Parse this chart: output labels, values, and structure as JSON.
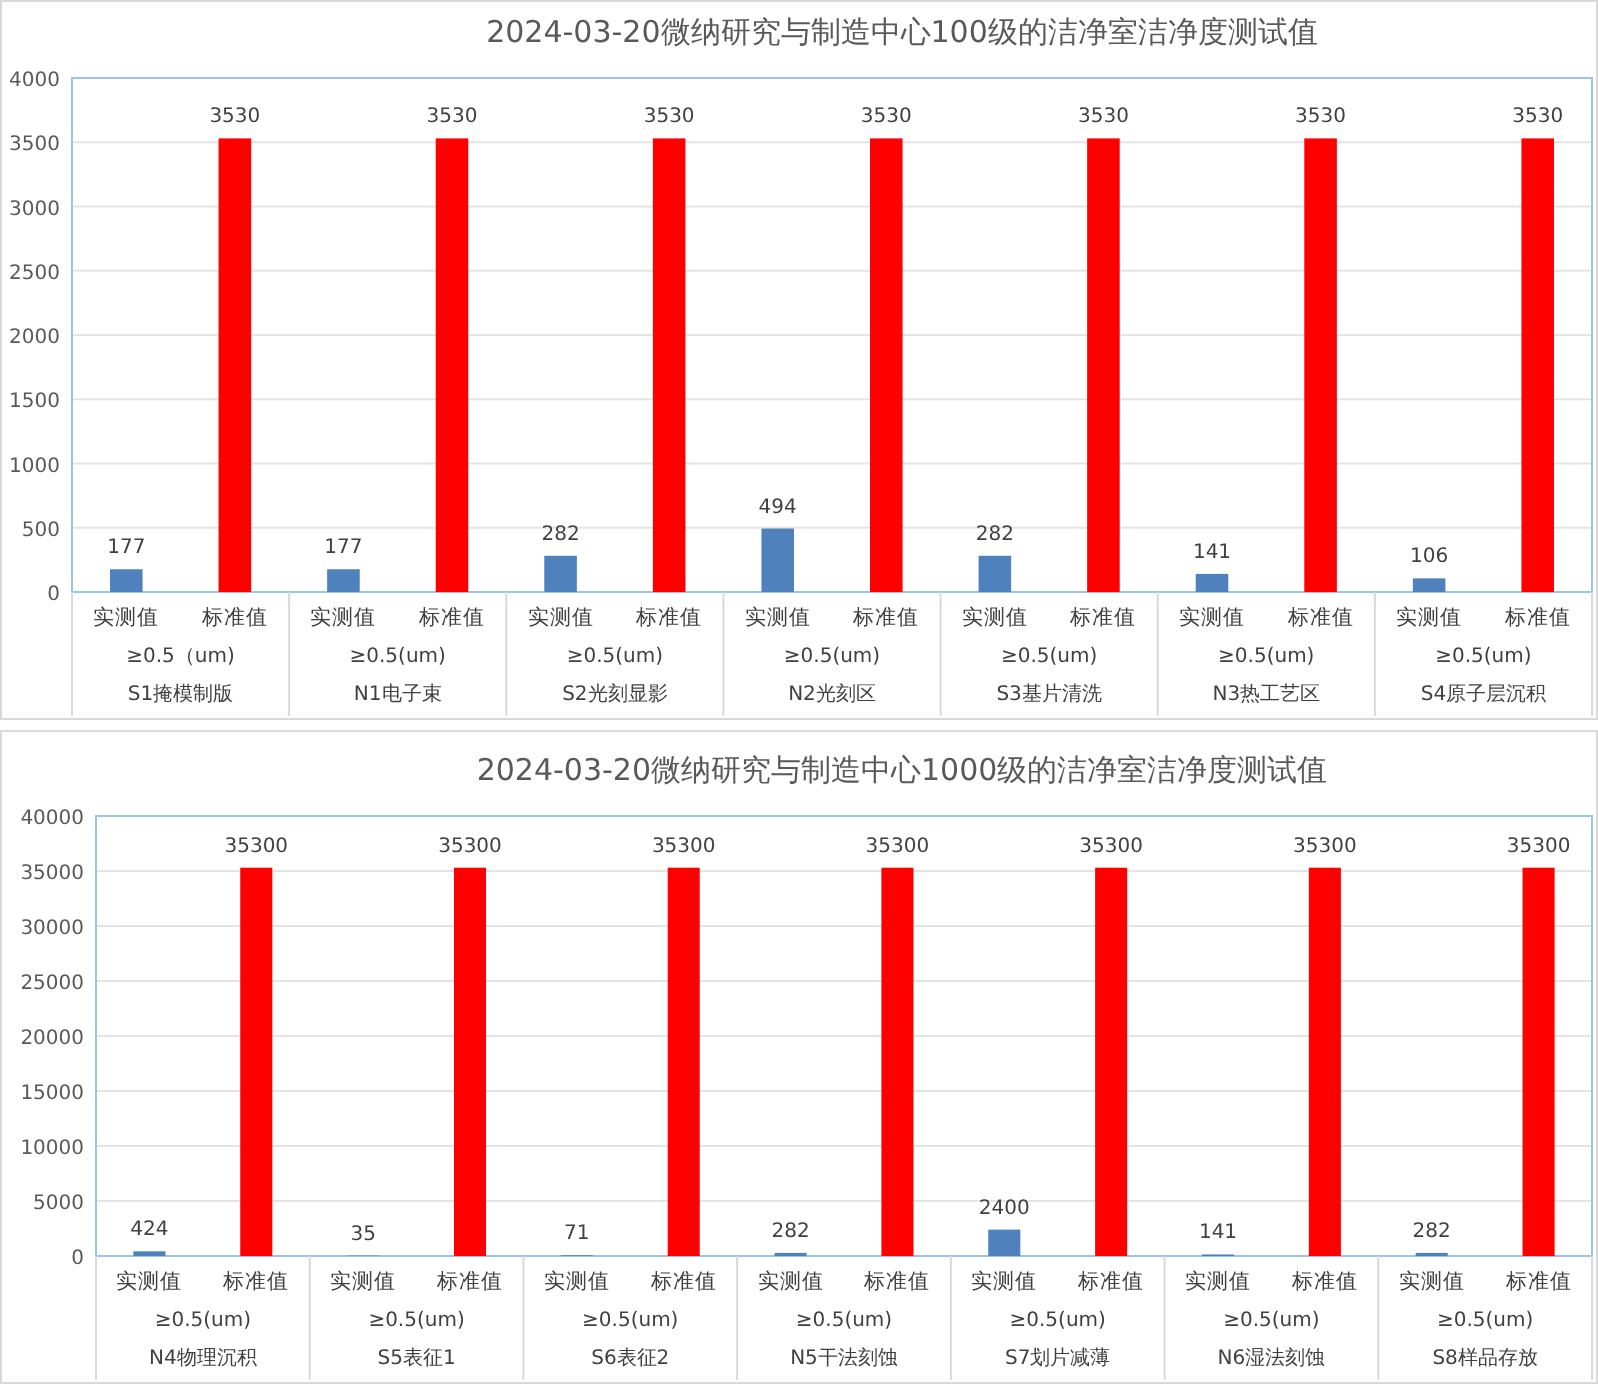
{
  "chart_data": [
    {
      "type": "bar",
      "title": "2024-03-20微纳研究与制造中心100级的洁净室洁净度测试值",
      "categories": [
        "实测值",
        "标准值",
        "实测值",
        "标准值",
        "实测值",
        "标准值",
        "实测值",
        "标准值",
        "实测值",
        "标准值",
        "实测值",
        "标准值",
        "实测值",
        "标准值"
      ],
      "values": [
        177,
        3530,
        177,
        3530,
        282,
        3530,
        494,
        3530,
        282,
        3530,
        141,
        3530,
        106,
        3530
      ],
      "colors": [
        "#4f81bd",
        "#ff0000",
        "#4f81bd",
        "#ff0000",
        "#4f81bd",
        "#ff0000",
        "#4f81bd",
        "#ff0000",
        "#4f81bd",
        "#ff0000",
        "#4f81bd",
        "#ff0000",
        "#4f81bd",
        "#ff0000"
      ],
      "annotations": [
        "≥0.5（um)",
        "≥0.5(um)",
        "≥0.5(um)",
        "≥0.5(um)",
        "≥0.5(um)",
        "≥0.5(um)",
        "≥0.5(um)",
        "S1掩模制版",
        "N1电子束",
        "S2光刻显影",
        "N2光刻区",
        "S3基片清洗",
        "N3热工艺区",
        "S4原子层沉积"
      ],
      "ylim": [
        0,
        4000
      ],
      "yticks": [
        0,
        500,
        1000,
        1500,
        2000,
        2500,
        3000,
        3500,
        4000
      ],
      "grid": "y",
      "data_labels": true
    },
    {
      "type": "bar",
      "title": "2024-03-20微纳研究与制造中心1000级的洁净室洁净度测试值",
      "categories": [
        "实测值",
        "标准值",
        "实测值",
        "标准值",
        "实测值",
        "标准值",
        "实测值",
        "标准值",
        "实测值",
        "标准值",
        "实测值",
        "标准值",
        "实测值",
        "标准值"
      ],
      "values": [
        424,
        35300,
        35,
        35300,
        71,
        35300,
        282,
        35300,
        2400,
        35300,
        141,
        35300,
        282,
        35300
      ],
      "colors": [
        "#4f81bd",
        "#ff0000",
        "#4f81bd",
        "#ff0000",
        "#4f81bd",
        "#ff0000",
        "#4f81bd",
        "#ff0000",
        "#4f81bd",
        "#ff0000",
        "#4f81bd",
        "#ff0000",
        "#4f81bd",
        "#ff0000"
      ],
      "annotations": [
        "≥0.5(um)",
        "≥0.5(um)",
        "≥0.5(um)",
        "≥0.5(um)",
        "≥0.5(um)",
        "≥0.5(um)",
        "≥0.5(um)",
        "N4物理沉积",
        "S5表征1",
        "S6表征2",
        "N5干法刻蚀",
        "S7划片减薄",
        "N6湿法刻蚀",
        "S8样品存放"
      ],
      "ylim": [
        0,
        40000
      ],
      "yticks": [
        0,
        5000,
        10000,
        15000,
        20000,
        25000,
        30000,
        35000,
        40000
      ],
      "grid": "y",
      "data_labels": true
    }
  ]
}
